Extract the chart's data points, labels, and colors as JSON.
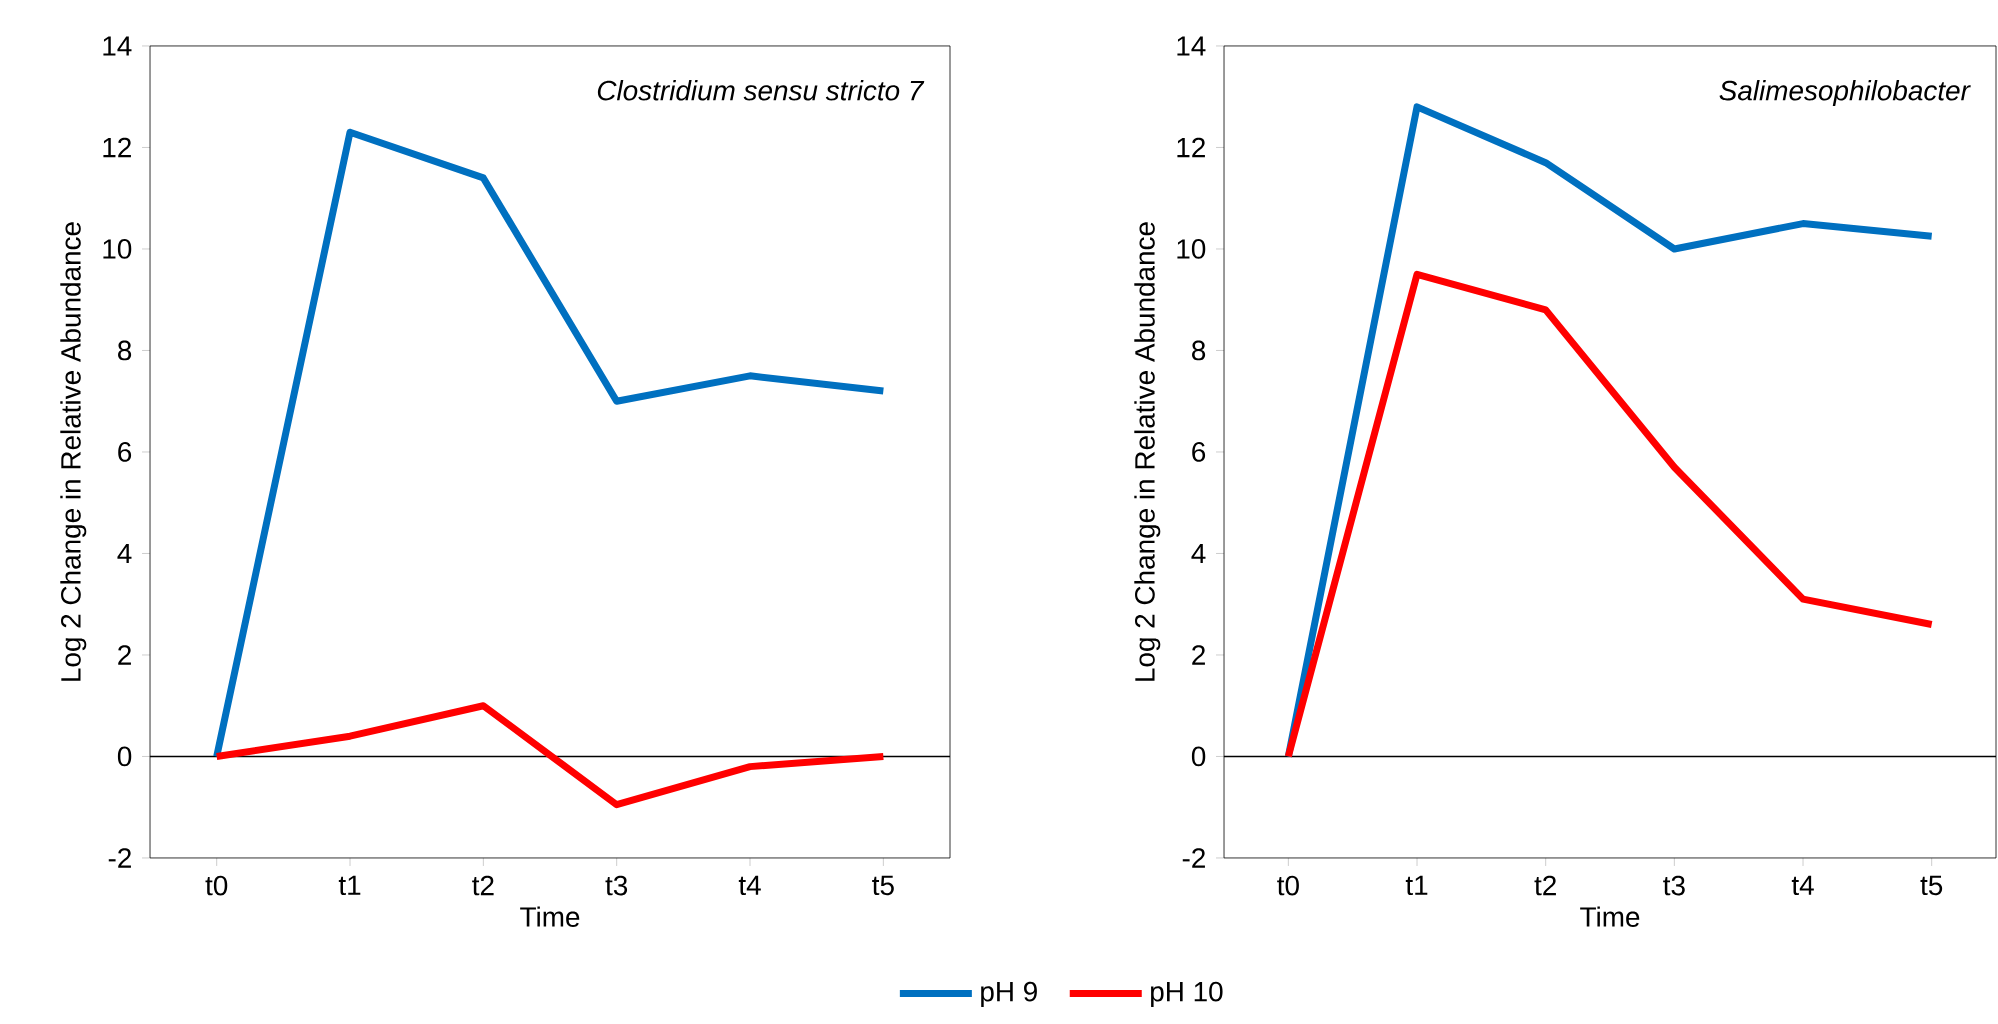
{
  "chart_data": [
    {
      "type": "line",
      "title": "*Clostridium sensu stricto 7*",
      "xlabel": "Time",
      "ylabel": "Log 2 Change in Relative Abundance",
      "categories": [
        "t0",
        "t1",
        "t2",
        "t3",
        "t4",
        "t5"
      ],
      "series": [
        {
          "name": "pH 9",
          "color": "#0070c0",
          "values": [
            0,
            12.3,
            11.4,
            7.0,
            7.5,
            7.2
          ]
        },
        {
          "name": "pH 10",
          "color": "#ff0000",
          "values": [
            0,
            0.4,
            1.0,
            -0.95,
            -0.2,
            0.0
          ]
        }
      ],
      "ylim": [
        -2,
        14
      ],
      "yticks": [
        -2,
        0,
        2,
        4,
        6,
        8,
        10,
        12,
        14
      ],
      "ref_lines": [
        {
          "axis": "y",
          "value": 0,
          "color": "#000000"
        }
      ],
      "legend": "bottom",
      "grid": false
    },
    {
      "type": "line",
      "title": "*Salimesophilobacter*",
      "xlabel": "Time",
      "ylabel": "Log 2 Change in Relative Abundance",
      "categories": [
        "t0",
        "t1",
        "t2",
        "t3",
        "t4",
        "t5"
      ],
      "series": [
        {
          "color": "#0070c0",
          "values": [
            0,
            12.8,
            11.7,
            10.0,
            10.5,
            10.25
          ]
        },
        {
          "color": "#ff0000",
          "values": [
            0,
            9.5,
            8.8,
            5.7,
            3.1,
            2.6
          ]
        }
      ],
      "ylim": [
        -2,
        14
      ],
      "yticks": [
        -2,
        0,
        2,
        4,
        6,
        8,
        10,
        12,
        14
      ],
      "ref_lines": [
        {
          "axis": "y",
          "value": 0,
          "color": "#000000"
        }
      ],
      "grid": false
    }
  ]
}
